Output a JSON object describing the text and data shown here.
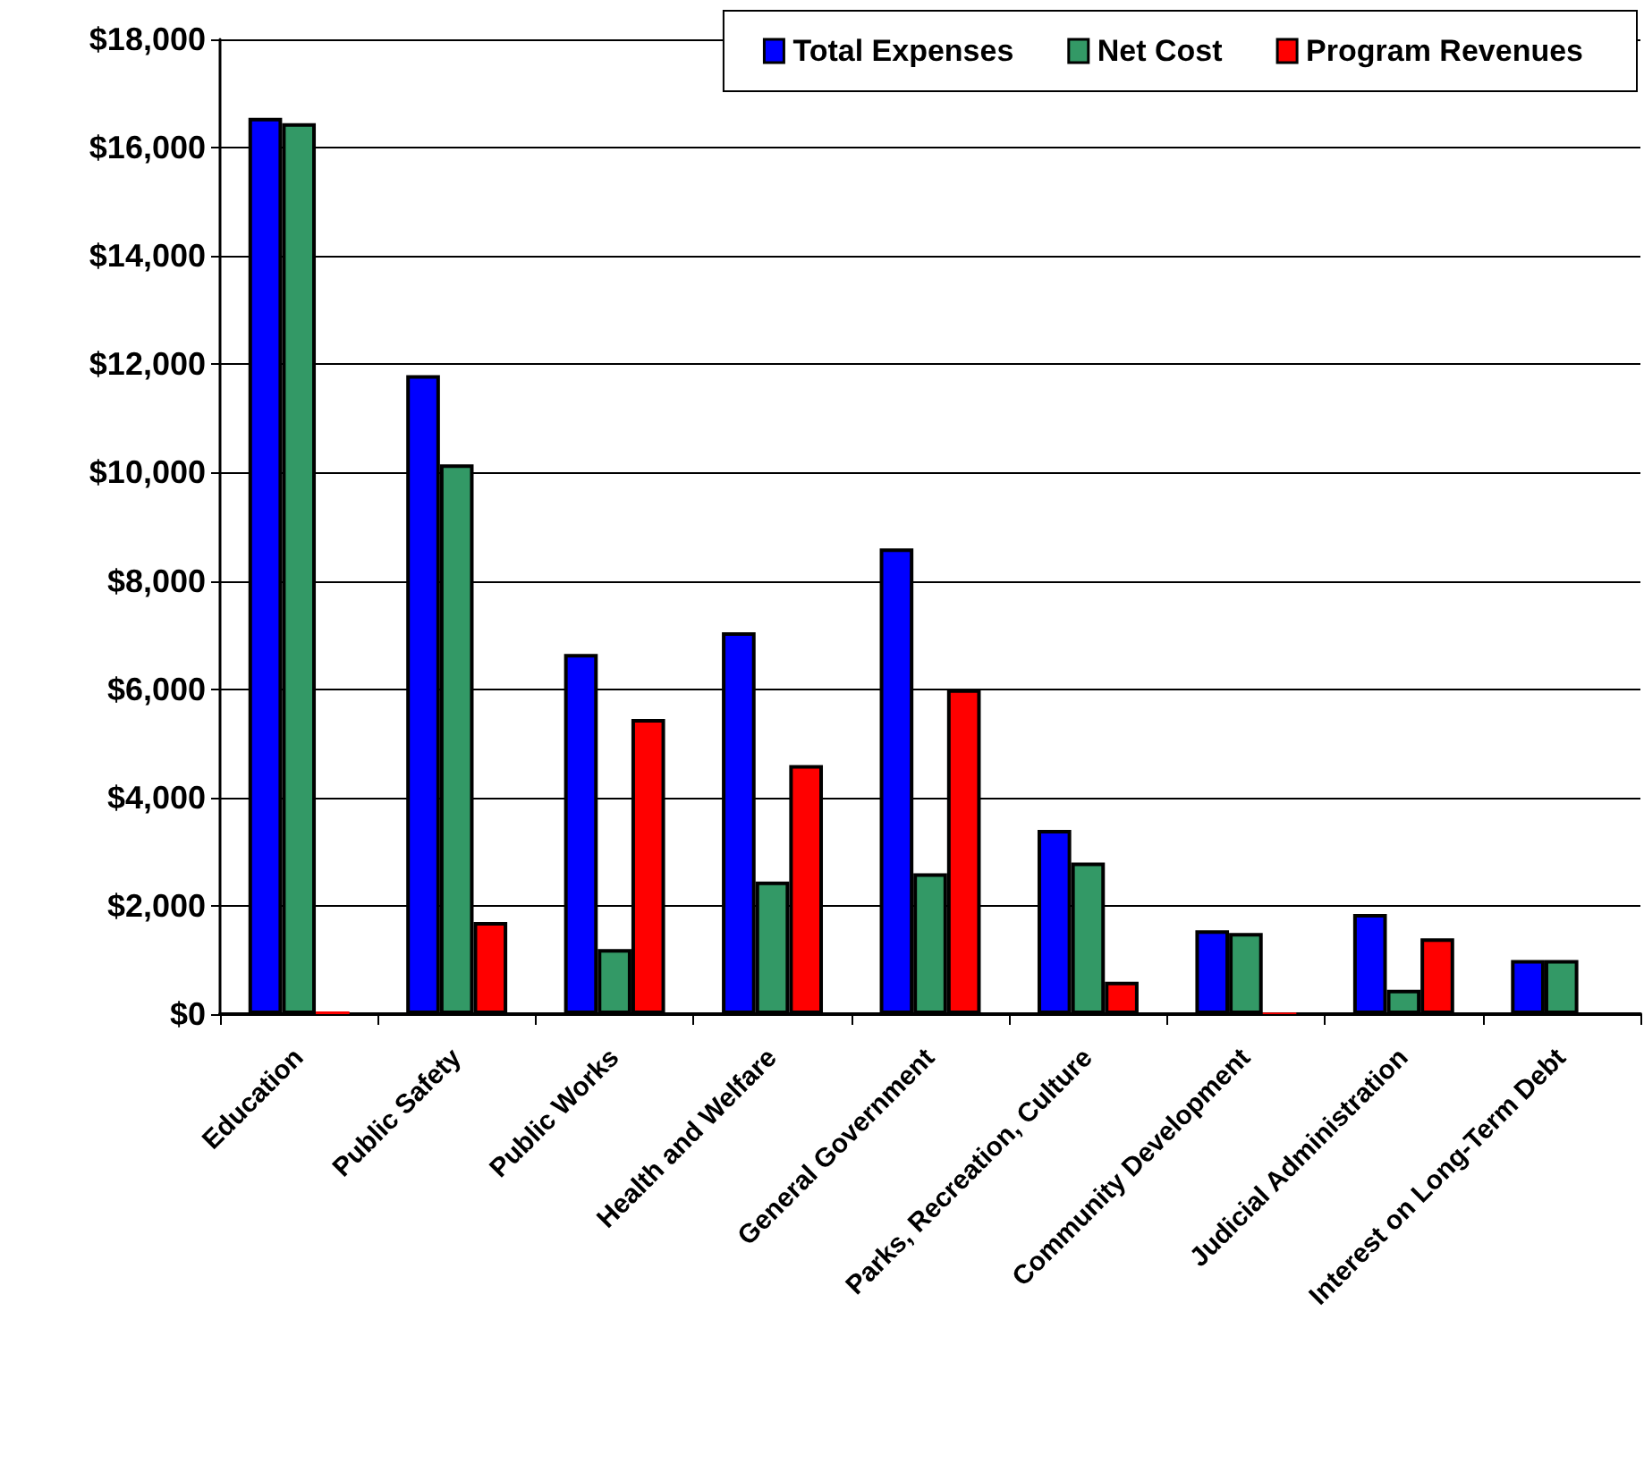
{
  "chart_data": {
    "type": "bar",
    "categories": [
      "Education",
      "Public Safety",
      "Public Works",
      "Health and Welfare",
      "General Government",
      "Parks, Recreation, Culture",
      "Community Development",
      "Judicial Administration",
      "Interest on Long-Term Debt"
    ],
    "series": [
      {
        "name": "Total Expenses",
        "color": "#0000ff",
        "values": [
          16550,
          11800,
          6650,
          7050,
          8600,
          3400,
          1550,
          1850,
          1000
        ]
      },
      {
        "name": "Net Cost",
        "color": "#339966",
        "values": [
          16450,
          10150,
          1200,
          2450,
          2600,
          2800,
          1500,
          450,
          1000
        ]
      },
      {
        "name": "Program Revenues",
        "color": "#ff0000",
        "values": [
          50,
          1700,
          5450,
          4600,
          6000,
          600,
          30,
          1400,
          0
        ]
      }
    ],
    "ylim": [
      0,
      18000
    ],
    "yticks": [
      {
        "value": 0,
        "label": "$0"
      },
      {
        "value": 2000,
        "label": "$2,000"
      },
      {
        "value": 4000,
        "label": "$4,000"
      },
      {
        "value": 6000,
        "label": "$6,000"
      },
      {
        "value": 8000,
        "label": "$8,000"
      },
      {
        "value": 10000,
        "label": "$10,000"
      },
      {
        "value": 12000,
        "label": "$12,000"
      },
      {
        "value": 14000,
        "label": "$14,000"
      },
      {
        "value": 16000,
        "label": "$16,000"
      },
      {
        "value": 18000,
        "label": "$18,000"
      }
    ],
    "grid": "y",
    "legend": "top right"
  }
}
